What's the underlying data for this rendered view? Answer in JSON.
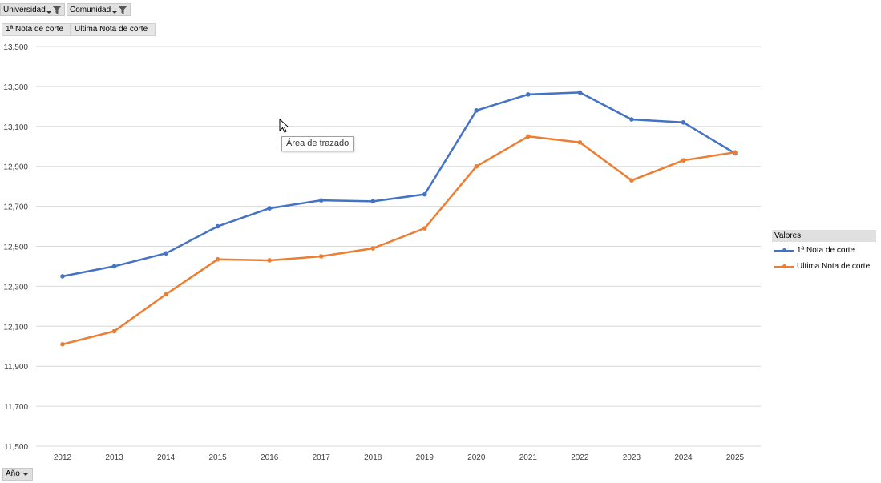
{
  "filters": [
    {
      "label": "Universidad",
      "icon": "filter-icon"
    },
    {
      "label": "Comunidad",
      "icon": "filter-icon"
    }
  ],
  "value_buttons": [
    "1ª Nota de corte",
    "Ultima Nota de corte"
  ],
  "axis_field": {
    "label": "Año",
    "icon": "dropdown-arrow-icon"
  },
  "tooltip": "Área de trazado",
  "legend": {
    "title": "Valores"
  },
  "colors": {
    "series1": "#4472c4",
    "series2": "#ed7d31",
    "grid": "#d9d9d9"
  },
  "chart_data": {
    "type": "line",
    "title": "",
    "xlabel": "",
    "ylabel": "",
    "x": [
      "2012",
      "2013",
      "2014",
      "2015",
      "2016",
      "2017",
      "2018",
      "2019",
      "2020",
      "2021",
      "2022",
      "2023",
      "2024",
      "2025"
    ],
    "ylim": [
      11.5,
      13.5
    ],
    "yticks": [
      11.5,
      11.7,
      11.9,
      12.1,
      12.3,
      12.5,
      12.7,
      12.9,
      13.1,
      13.3,
      13.5
    ],
    "ytick_labels": [
      "11,500",
      "11,700",
      "11,900",
      "12,100",
      "12,300",
      "12,500",
      "12,700",
      "12,900",
      "13,100",
      "13,300",
      "13,500"
    ],
    "grid": true,
    "legend_position": "right",
    "series": [
      {
        "name": "1ª Nota de corte",
        "values": [
          12.35,
          12.4,
          12.465,
          12.6,
          12.69,
          12.73,
          12.725,
          12.76,
          13.18,
          13.26,
          13.27,
          13.135,
          13.12,
          12.965
        ]
      },
      {
        "name": "Ultima Nota de corte",
        "values": [
          12.01,
          12.075,
          12.26,
          12.435,
          12.43,
          12.45,
          12.49,
          12.59,
          12.9,
          13.05,
          13.02,
          12.83,
          12.93,
          12.97
        ]
      }
    ]
  }
}
